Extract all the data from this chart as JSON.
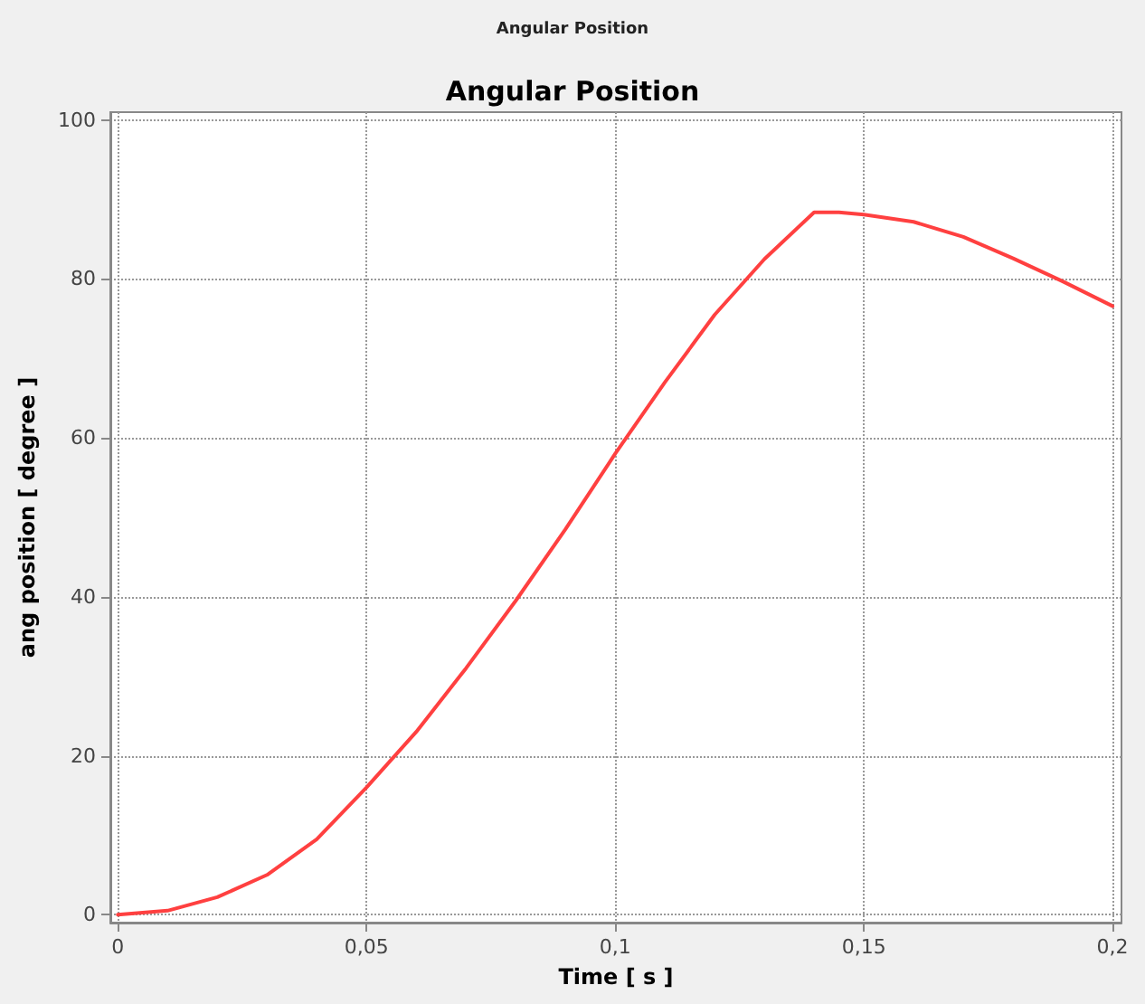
{
  "chart_data": {
    "type": "line",
    "title": "Angular Position",
    "annotations": [
      "Angular Position"
    ],
    "xlabel": "Time [ s ]",
    "ylabel": "ang position [ degree ]",
    "x": [
      0,
      0.01,
      0.02,
      0.03,
      0.04,
      0.05,
      0.06,
      0.07,
      0.08,
      0.09,
      0.1,
      0.11,
      0.12,
      0.13,
      0.14,
      0.145,
      0.15,
      0.16,
      0.17,
      0.18,
      0.19,
      0.2
    ],
    "series": [
      {
        "color": "#ff4040",
        "values": [
          0,
          0.5,
          2.2,
          5,
          9.5,
          16,
          23,
          31,
          39.5,
          48.5,
          58,
          67,
          75.5,
          82.5,
          88.4,
          88.4,
          88.1,
          87.2,
          85.3,
          82.6,
          79.7,
          76.6
        ]
      }
    ],
    "xlim": [
      -0.0015,
      0.2018
    ],
    "ylim": [
      -1,
      101
    ],
    "xticks": [
      0,
      {
        "value": 0.05,
        "label": "0,05"
      },
      {
        "value": 0.1,
        "label": "0,1"
      },
      {
        "value": 0.15,
        "label": "0,15"
      },
      {
        "value": 0.2,
        "label": "0,2"
      }
    ],
    "yticks": [
      0,
      20,
      40,
      60,
      80,
      100
    ],
    "grid": true,
    "marker": "none",
    "line_style": "solid"
  }
}
